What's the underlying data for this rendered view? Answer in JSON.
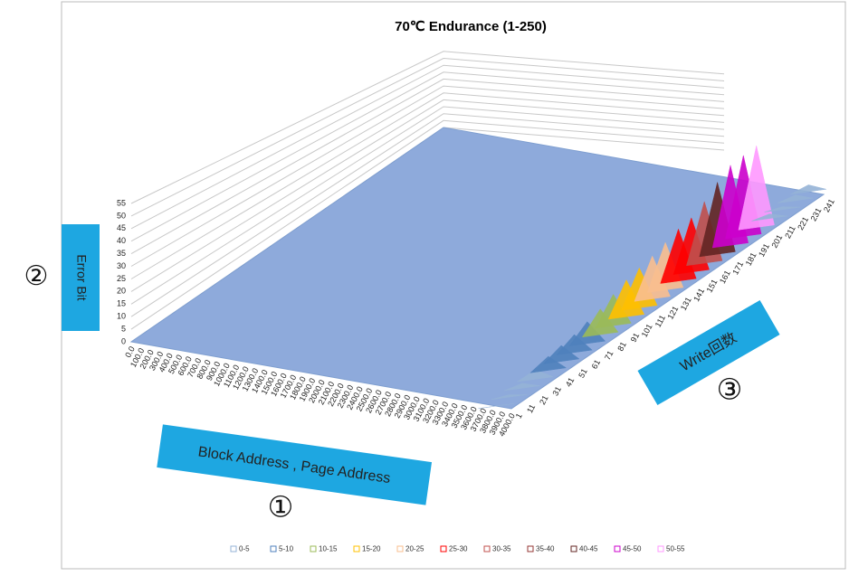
{
  "chart_data": {
    "type": "surface",
    "title": "70℃ Endurance (1-250)",
    "annotations": [
      "Error Bit",
      "②",
      "Block Address , Page Address",
      "①",
      "Write回数",
      "③"
    ],
    "categories": [
      "0.0",
      "100.0",
      "200.0",
      "300.0",
      "400.0",
      "500.0",
      "600.0",
      "700.0",
      "800.0",
      "900.0",
      "1000.0",
      "1100.0",
      "1200.0",
      "1300.0",
      "1400.0",
      "1500.0",
      "1600.0",
      "1700.0",
      "1800.0",
      "1900.0",
      "2000.0",
      "2100.0",
      "2200.0",
      "2300.0",
      "2400.0",
      "2500.0",
      "2600.0",
      "2700.0",
      "2800.0",
      "2900.0",
      "3000.0",
      "3100.0",
      "3200.0",
      "3300.0",
      "3400.0",
      "3500.0",
      "3600.0",
      "3700.0",
      "3800.0",
      "3900.0",
      "4000.0"
    ],
    "x": [
      1,
      11,
      21,
      31,
      41,
      51,
      61,
      71,
      81,
      91,
      101,
      111,
      121,
      131,
      141,
      151,
      161,
      171,
      181,
      191,
      201,
      211,
      221,
      231,
      241
    ],
    "values": [
      0,
      1,
      2,
      4,
      6,
      7,
      8,
      10,
      12,
      15,
      18,
      20,
      22,
      25,
      28,
      30,
      35,
      42,
      48,
      50,
      52,
      3,
      2,
      4,
      5
    ],
    "ylim": [
      0,
      55
    ],
    "yticks": [
      0,
      5,
      10,
      15,
      20,
      25,
      30,
      35,
      40,
      45,
      50,
      55
    ],
    "grid": true,
    "series": [
      {
        "name": "0-5",
        "color": "#95b3d7"
      },
      {
        "name": "5-10",
        "color": "#4f81bd"
      },
      {
        "name": "10-15",
        "color": "#9bbb59"
      },
      {
        "name": "15-20",
        "color": "#ffc000"
      },
      {
        "name": "20-25",
        "color": "#fabf8f"
      },
      {
        "name": "25-30",
        "color": "#ff0000"
      },
      {
        "name": "30-35",
        "color": "#c0504d"
      },
      {
        "name": "35-40",
        "color": "#953735"
      },
      {
        "name": "40-45",
        "color": "#632523"
      },
      {
        "name": "45-50",
        "color": "#cc00cc"
      },
      {
        "name": "50-55",
        "color": "#ff99ff"
      }
    ]
  }
}
